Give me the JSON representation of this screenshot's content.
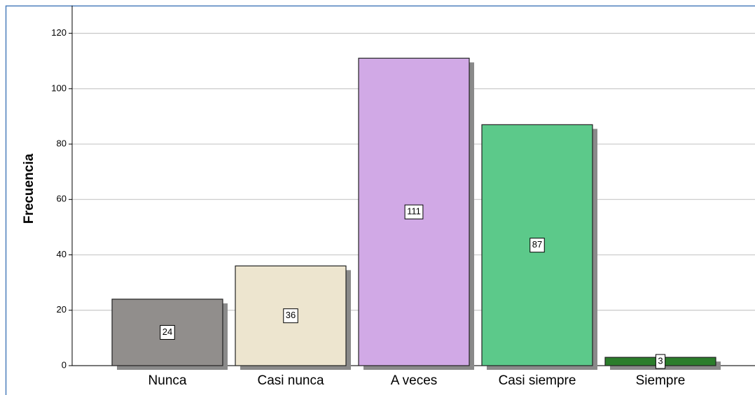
{
  "chart_data": {
    "type": "bar",
    "y_label": "Frecuencia",
    "categories": [
      "Nunca",
      "Casi nunca",
      "A veces",
      "Casi siempre",
      "Siempre"
    ],
    "values": [
      24,
      36,
      111,
      87,
      3
    ],
    "colors": [
      "#918e8c",
      "#ede5cf",
      "#d1a9e6",
      "#5cc98a",
      "#2b7d2b"
    ],
    "ylim": [
      0,
      130
    ],
    "yticks": [
      0,
      20,
      40,
      60,
      80,
      100,
      120
    ],
    "grid": true
  }
}
